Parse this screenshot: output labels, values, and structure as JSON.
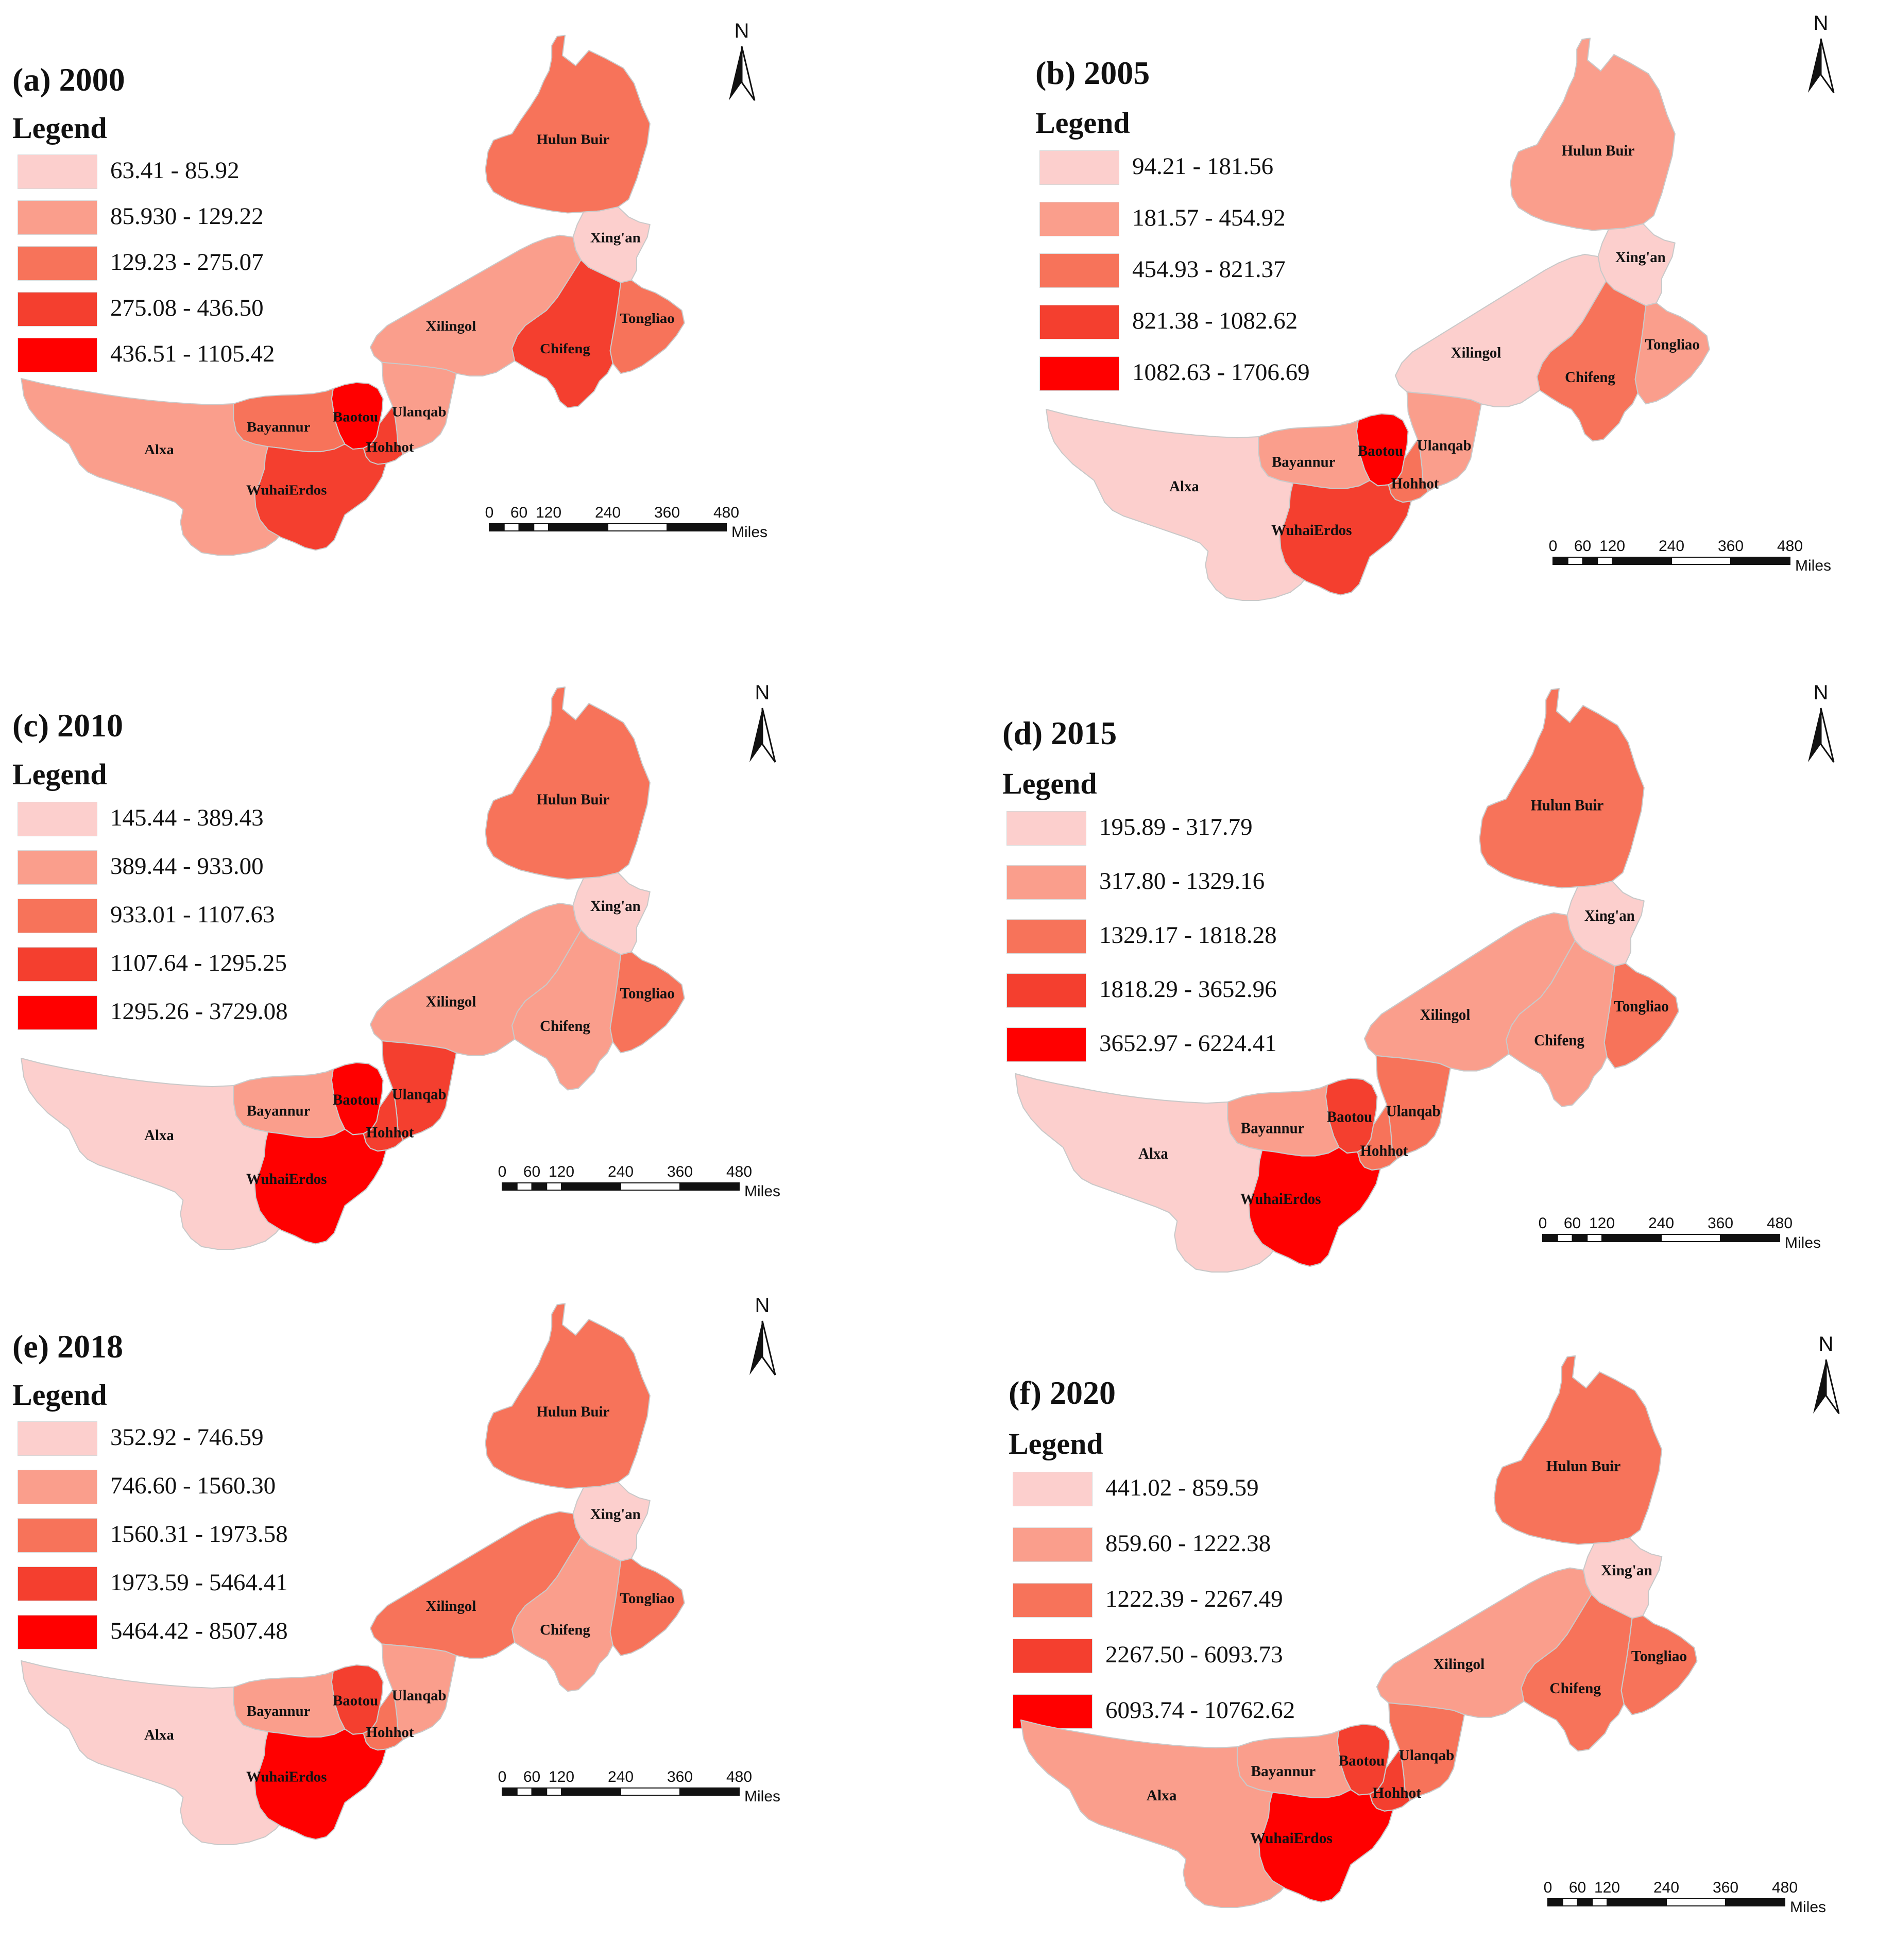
{
  "figure": {
    "panels": [
      {
        "id": "a",
        "title": "(a) 2000",
        "legend_title": "Legend",
        "legend": [
          {
            "label": "63.41 - 85.92",
            "color": "#FCCFCD"
          },
          {
            "label": "85.930 - 129.22",
            "color": "#FA9E8C"
          },
          {
            "label": "129.23 - 275.07",
            "color": "#F7735A"
          },
          {
            "label": "275.08 - 436.50",
            "color": "#F43F2F"
          },
          {
            "label": "436.51 - 1105.42",
            "color": "#FF0000"
          }
        ],
        "regions": {
          "Hulun Buir": 3,
          "Xing'an": 1,
          "Tongliao": 3,
          "Chifeng": 4,
          "Xilingol": 2,
          "Ulanqab": 2,
          "Hohhot": 4,
          "Baotou": 5,
          "Bayannur": 3,
          "Alxa": 2,
          "WuhaiErdos": 4
        }
      },
      {
        "id": "b",
        "title": "(b) 2005",
        "legend_title": "Legend",
        "legend": [
          {
            "label": "94.21 - 181.56",
            "color": "#FCCFCD"
          },
          {
            "label": "181.57 - 454.92",
            "color": "#FA9E8C"
          },
          {
            "label": "454.93 - 821.37",
            "color": "#F7735A"
          },
          {
            "label": "821.38 - 1082.62",
            "color": "#F43F2F"
          },
          {
            "label": "1082.63 - 1706.69",
            "color": "#FF0000"
          }
        ],
        "regions": {
          "Hulun Buir": 2,
          "Xing'an": 1,
          "Tongliao": 2,
          "Chifeng": 3,
          "Xilingol": 1,
          "Ulanqab": 2,
          "Hohhot": 3,
          "Baotou": 5,
          "Bayannur": 2,
          "Alxa": 1,
          "WuhaiErdos": 4
        }
      },
      {
        "id": "c",
        "title": "(c) 2010",
        "legend_title": "Legend",
        "legend": [
          {
            "label": "145.44 - 389.43",
            "color": "#FCCFCD"
          },
          {
            "label": "389.44 - 933.00",
            "color": "#FA9E8C"
          },
          {
            "label": "933.01 - 1107.63",
            "color": "#F7735A"
          },
          {
            "label": "1107.64 - 1295.25",
            "color": "#F43F2F"
          },
          {
            "label": "1295.26 - 3729.08",
            "color": "#FF0000"
          }
        ],
        "regions": {
          "Hulun Buir": 3,
          "Xing'an": 1,
          "Tongliao": 3,
          "Chifeng": 2,
          "Xilingol": 2,
          "Ulanqab": 4,
          "Hohhot": 4,
          "Baotou": 5,
          "Bayannur": 2,
          "Alxa": 1,
          "WuhaiErdos": 5
        }
      },
      {
        "id": "d",
        "title": "(d) 2015",
        "legend_title": "Legend",
        "legend": [
          {
            "label": "195.89 - 317.79",
            "color": "#FCCFCD"
          },
          {
            "label": "317.80 - 1329.16",
            "color": "#FA9E8C"
          },
          {
            "label": "1329.17 - 1818.28",
            "color": "#F7735A"
          },
          {
            "label": "1818.29 - 3652.96",
            "color": "#F43F2F"
          },
          {
            "label": "3652.97 - 6224.41",
            "color": "#FF0000"
          }
        ],
        "regions": {
          "Hulun Buir": 3,
          "Xing'an": 1,
          "Tongliao": 3,
          "Chifeng": 2,
          "Xilingol": 2,
          "Ulanqab": 3,
          "Hohhot": 3,
          "Baotou": 4,
          "Bayannur": 2,
          "Alxa": 1,
          "WuhaiErdos": 5
        }
      },
      {
        "id": "e",
        "title": "(e) 2018",
        "legend_title": "Legend",
        "legend": [
          {
            "label": "352.92 - 746.59",
            "color": "#FCCFCD"
          },
          {
            "label": "746.60 - 1560.30",
            "color": "#FA9E8C"
          },
          {
            "label": "1560.31 - 1973.58",
            "color": "#F7735A"
          },
          {
            "label": "1973.59 - 5464.41",
            "color": "#F43F2F"
          },
          {
            "label": "5464.42 - 8507.48",
            "color": "#FF0000"
          }
        ],
        "regions": {
          "Hulun Buir": 3,
          "Xing'an": 1,
          "Tongliao": 3,
          "Chifeng": 2,
          "Xilingol": 3,
          "Ulanqab": 2,
          "Hohhot": 3,
          "Baotou": 4,
          "Bayannur": 2,
          "Alxa": 1,
          "WuhaiErdos": 5
        }
      },
      {
        "id": "f",
        "title": "(f) 2020",
        "legend_title": "Legend",
        "legend": [
          {
            "label": "441.02 - 859.59",
            "color": "#FCCFCD"
          },
          {
            "label": "859.60 - 1222.38",
            "color": "#FA9E8C"
          },
          {
            "label": "1222.39 - 2267.49",
            "color": "#F7735A"
          },
          {
            "label": "2267.50 - 6093.73",
            "color": "#F43F2F"
          },
          {
            "label": "6093.74 - 10762.62",
            "color": "#FF0000"
          }
        ],
        "regions": {
          "Hulun Buir": 3,
          "Xing'an": 1,
          "Tongliao": 3,
          "Chifeng": 3,
          "Xilingol": 2,
          "Ulanqab": 3,
          "Hohhot": 4,
          "Baotou": 4,
          "Bayannur": 2,
          "Alxa": 2,
          "WuhaiErdos": 5
        }
      }
    ],
    "north_label": "N",
    "scale_bar": {
      "ticks": [
        "0",
        "60",
        "120",
        "240",
        "360",
        "480"
      ],
      "unit": "Miles"
    }
  }
}
